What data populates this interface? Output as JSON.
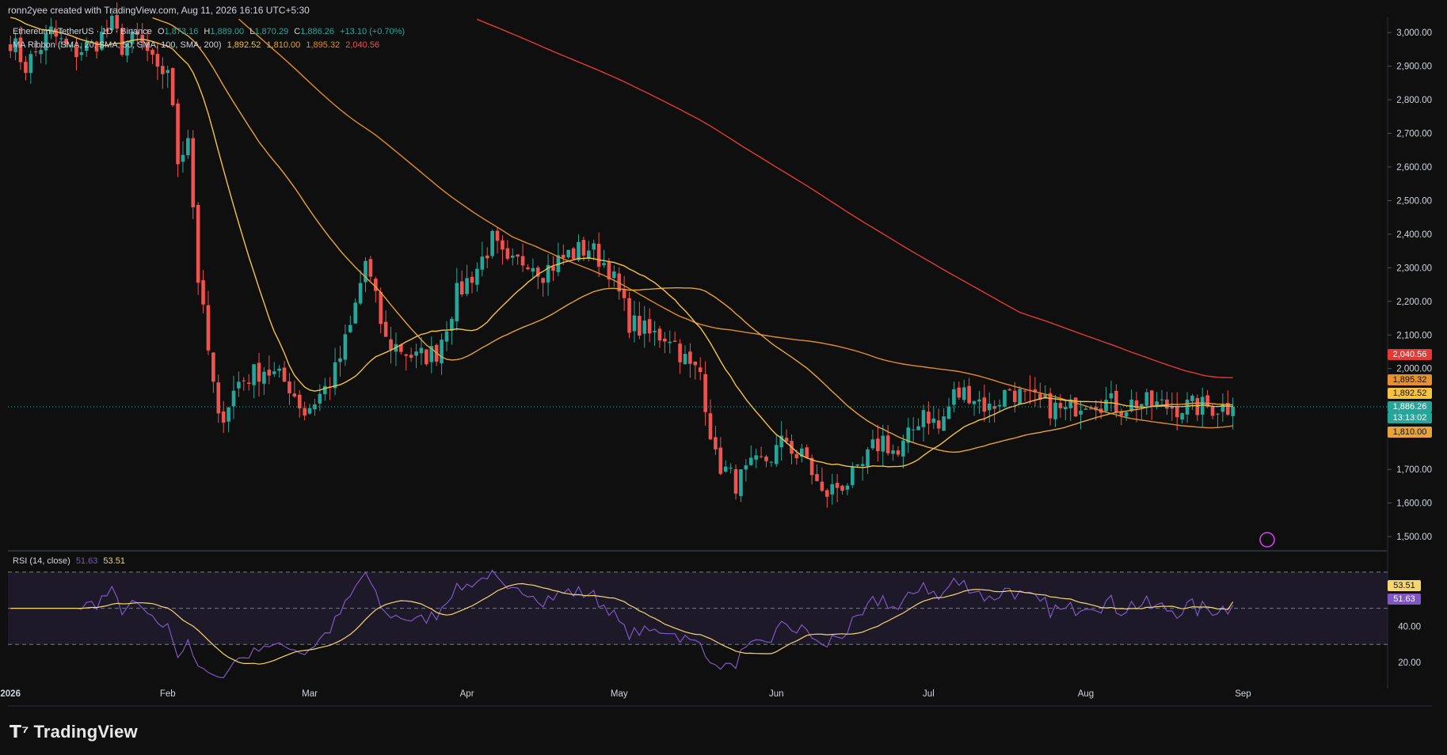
{
  "header": {
    "credit": "ronn2yee created with TradingView.com, Aug 11, 2026 16:16 UTC+5:30"
  },
  "legend": {
    "symbol": "Ethereum / TetherUS · 1D · Binance",
    "o_label": "O",
    "o_value": "1,873.16",
    "h_label": "H",
    "h_value": "1,889.00",
    "l_label": "L",
    "l_value": "1,870.29",
    "c_label": "C",
    "c_value": "1,886.26",
    "change": "+13.10 (+0.70%)",
    "ma_label": "MA Ribbon (SMA, 20, SMA, 50, SMA, 100, SMA, 200)",
    "ma_v1": "1,892.52",
    "ma_v2": "1,810.00",
    "ma_v3": "1,895.32",
    "ma_v4": "2,040.56",
    "rsi_label": "RSI (14, close)",
    "rsi_v1": "51.63",
    "rsi_v2": "53.51"
  },
  "price_tags": {
    "ma200": "2,040.56",
    "ma100": "1,895.32",
    "ma20": "1,892.52",
    "last": "1,886.26",
    "countdown": "13:13:02",
    "ma50": "1,810.00",
    "rsi": "51.63",
    "rsi_ma": "53.51"
  },
  "colors": {
    "up": "#26a69a",
    "down": "#ef5350",
    "ma20": "#f5c242",
    "ma50": "#e8a33a",
    "ma100": "#e08b2e",
    "ma200": "#e03a3a",
    "rsi": "#7e57c2",
    "rsi_ma": "#f5d76e"
  },
  "branding": {
    "logo_text": "TradingView"
  },
  "chart_data": [
    {
      "type": "candlestick",
      "title": "",
      "y_ticks": [
        "3,000.00",
        "2,900.00",
        "2,800.00",
        "2,700.00",
        "2,600.00",
        "2,500.00",
        "2,400.00",
        "2,300.00",
        "2,200.00",
        "2,100.00",
        "2,000.00",
        "1,700.00",
        "1,600.00",
        "1,500.00"
      ],
      "y_tick_values": [
        3000,
        2900,
        2800,
        2700,
        2600,
        2500,
        2400,
        2300,
        2200,
        2100,
        2000,
        1700,
        1600,
        1500
      ],
      "ylim": [
        1460,
        3045
      ],
      "x_ticks": [
        "2026",
        "Feb",
        "Mar",
        "Apr",
        "May",
        "Jun",
        "Jul",
        "Aug",
        "Sep"
      ],
      "x_tick_days": [
        0,
        31,
        59,
        90,
        120,
        151,
        181,
        212,
        243
      ],
      "x_start_date": "2025-12-13",
      "x_end_date": "2026-09-10",
      "close_series_anchors": {
        "days": [
          0,
          3,
          8,
          12,
          16,
          20,
          22,
          25,
          27,
          29,
          31,
          33,
          35,
          37,
          39,
          41,
          45,
          50,
          55,
          58,
          62,
          64,
          67,
          70,
          74,
          77,
          80,
          84,
          88,
          92,
          95,
          98,
          102,
          105,
          110,
          114,
          118,
          122,
          126,
          130,
          134,
          136,
          139,
          143,
          146,
          150,
          153,
          155,
          157,
          160,
          163,
          167,
          170,
          172,
          175,
          178,
          180,
          183,
          186,
          189,
          193,
          197,
          200,
          204,
          208,
          212,
          216,
          219,
          222,
          226,
          230,
          233,
          236
        ],
        "values": [
          2980,
          2900,
          3000,
          2940,
          2960,
          3020,
          2960,
          2980,
          2940,
          2870,
          2900,
          2620,
          2700,
          2270,
          2050,
          1840,
          1960,
          2000,
          1950,
          1870,
          1940,
          1990,
          2120,
          2320,
          2080,
          2060,
          2030,
          2050,
          2220,
          2300,
          2380,
          2300,
          2330,
          2290,
          2340,
          2360,
          2300,
          2140,
          2100,
          2100,
          2000,
          1990,
          1730,
          1660,
          1700,
          1740,
          1790,
          1740,
          1730,
          1620,
          1650,
          1680,
          1760,
          1790,
          1740,
          1820,
          1880,
          1820,
          1920,
          1930,
          1880,
          1940,
          1910,
          1890,
          1870,
          1910,
          1900,
          1886,
          1900,
          1890,
          1886,
          1886,
          1886
        ]
      },
      "series": [
        {
          "name": "SMA 20",
          "current": 1892.52
        },
        {
          "name": "SMA 50",
          "current": 1810.0
        },
        {
          "name": "SMA 100",
          "current": 1895.32
        },
        {
          "name": "SMA 200",
          "current": 2040.56
        }
      ],
      "last_price": 1886.26
    },
    {
      "type": "line",
      "title": "RSI (14, close)",
      "y_ticks": [
        "40.00",
        "20.00"
      ],
      "y_tick_values": [
        40,
        20
      ],
      "bands": [
        30,
        70
      ],
      "midline": 50,
      "ylim": [
        10,
        80
      ],
      "series": [
        {
          "name": "RSI",
          "current": 51.63
        },
        {
          "name": "RSI-based MA",
          "current": 53.51
        }
      ]
    }
  ]
}
